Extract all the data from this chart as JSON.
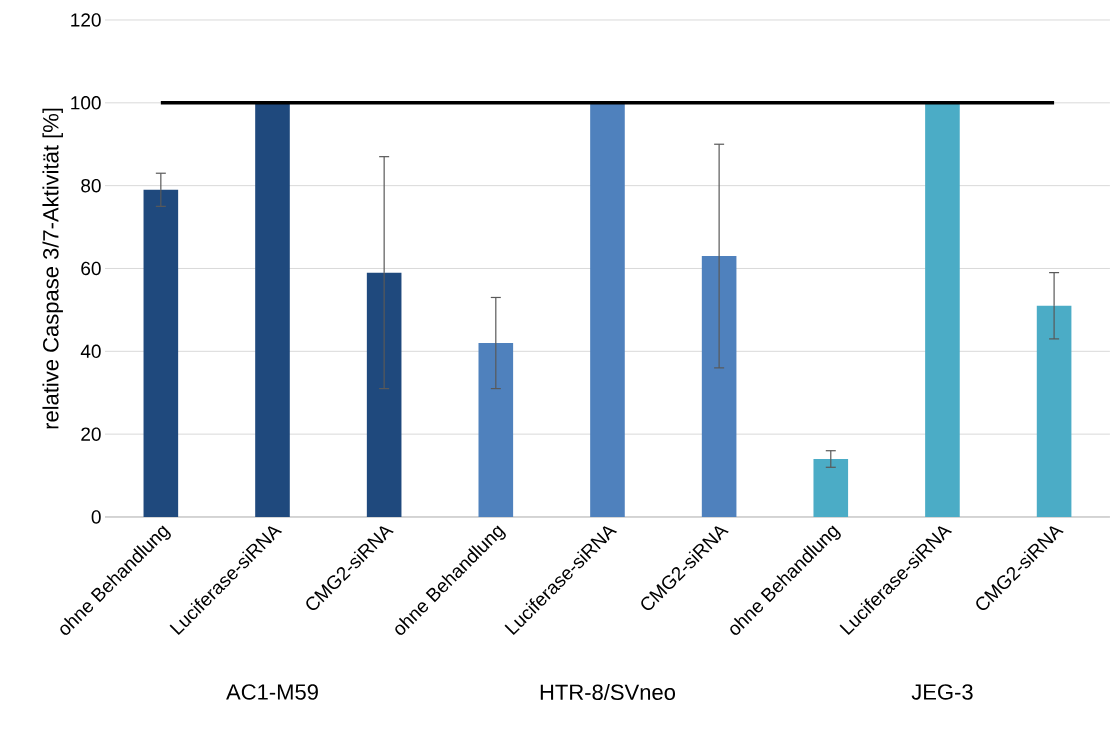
{
  "chart_data": {
    "type": "bar",
    "ylabel": "relative Caspase 3/7-Aktivität [%]",
    "categories": [
      "ohne Behandlung",
      "Luciferase-siRNA",
      "CMG2-siRNA",
      "ohne Behandlung",
      "Luciferase-siRNA",
      "CMG2-siRNA",
      "ohne Behandlung",
      "Luciferase-siRNA",
      "CMG2-siRNA"
    ],
    "values": [
      79,
      100,
      59,
      42,
      100,
      63,
      14,
      100,
      51
    ],
    "errors": [
      4,
      null,
      28,
      11,
      null,
      27,
      2,
      null,
      8
    ],
    "colors": [
      "#1f497d",
      "#1f497d",
      "#1f497d",
      "#4f81bd",
      "#4f81bd",
      "#4f81bd",
      "#4bacc6",
      "#4bacc6",
      "#4bacc6"
    ],
    "ref_lines": [
      {
        "axis": "y",
        "value": 100,
        "color": "#000000"
      }
    ],
    "annotations": [
      "AC1-M59",
      "HTR-8/SVneo",
      "JEG-3"
    ],
    "ylim": [
      0,
      120
    ],
    "yticks": [
      0,
      20,
      40,
      60,
      80,
      100,
      120
    ],
    "grid": "y"
  }
}
